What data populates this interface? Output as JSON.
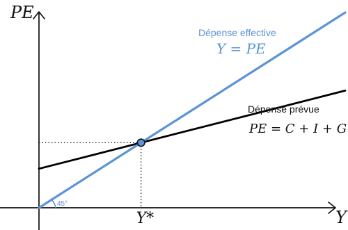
{
  "chart_data": {
    "type": "line",
    "axes": {
      "x_label": "Y",
      "y_label": "PE",
      "x_marker_label": "Y*",
      "angle_label": "45°"
    },
    "lines": {
      "effective": {
        "name": "Dépense effective",
        "equation": "Y = PE",
        "color": "#5b93d7",
        "points": [
          [
            0,
            0
          ],
          [
            10,
            10
          ]
        ]
      },
      "planned": {
        "name": "Dépense prévue",
        "equation": "PE = C + I + G",
        "color": "#000000",
        "points": [
          [
            0,
            2
          ],
          [
            10,
            6
          ]
        ]
      }
    },
    "equilibrium": {
      "x": 3.333,
      "y": 3.333,
      "fill": "#5b93d7"
    },
    "x_range": [
      0,
      10
    ],
    "y_range": [
      0,
      10
    ],
    "grid": false
  }
}
